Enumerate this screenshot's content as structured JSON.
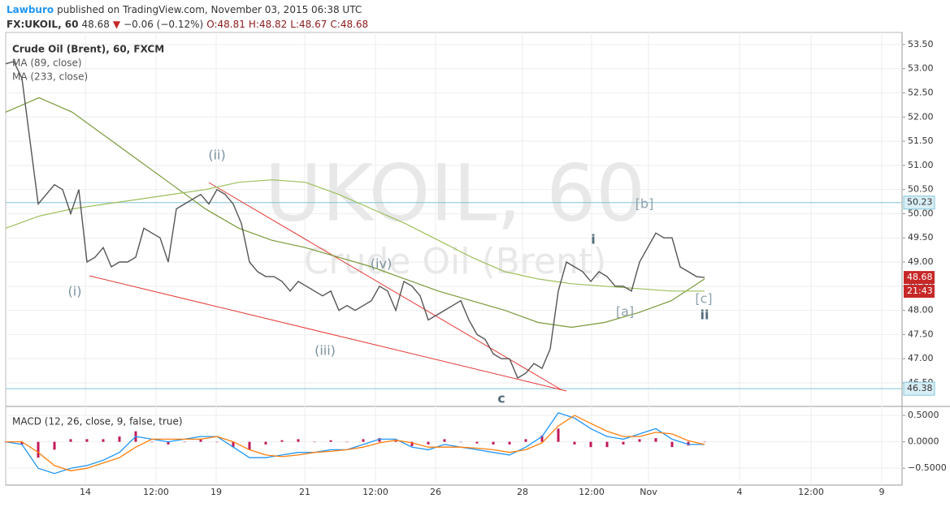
{
  "header": {
    "publisher": "Lawburo",
    "published": "published on TradingView.com, November 03, 2015 06:38 UTC",
    "symbol": "FX:UKOIL, 60",
    "last": "48.68",
    "arrow": "▼",
    "change": "−0.06 (−0.12%)",
    "open": "O:48.81",
    "high": "H:48.82",
    "low": "L:48.67",
    "close": "C:48.68"
  },
  "chart_data": [
    {
      "type": "line",
      "title": "Crude Oil (Brent), 60, FXCM",
      "watermark": "UKOIL, 60",
      "watermark_sub": "Crude Oil (Brent)",
      "color": "#555555",
      "values": [
        53.1,
        53.15,
        52.8,
        51.5,
        50.2,
        50.4,
        50.6,
        50.5,
        50.0,
        50.5,
        49.0,
        49.1,
        49.3,
        48.9,
        49.0,
        49.0,
        49.1,
        49.7,
        49.6,
        49.5,
        49.0,
        50.1,
        50.2,
        50.3,
        50.4,
        50.2,
        50.5,
        50.4,
        50.2,
        49.8,
        49.0,
        48.8,
        48.7,
        48.7,
        48.6,
        48.4,
        48.6,
        48.5,
        48.4,
        48.3,
        48.4,
        48.0,
        48.1,
        48.0,
        48.1,
        48.2,
        48.5,
        48.4,
        48.0,
        48.6,
        48.5,
        48.3,
        47.8,
        47.9,
        48.0,
        48.1,
        48.2,
        47.8,
        47.5,
        47.4,
        47.1,
        47.0,
        47.0,
        46.6,
        46.7,
        46.9,
        46.8,
        47.2,
        48.4,
        49.0,
        48.9,
        48.8,
        48.6,
        48.8,
        48.7,
        48.5,
        48.5,
        48.4,
        49.0,
        49.3,
        49.6,
        49.5,
        49.5,
        48.9,
        48.8,
        48.7,
        48.68
      ],
      "series": [
        {
          "name": "MA (89, close)",
          "color": "#7a9a3a",
          "values": [
            52.1,
            52.4,
            52.1,
            51.6,
            51.1,
            50.6,
            50.1,
            49.7,
            49.45,
            49.3,
            49.1,
            48.9,
            48.65,
            48.4,
            48.2,
            48.0,
            47.75,
            47.65,
            47.75,
            47.95,
            48.2,
            48.65
          ]
        },
        {
          "name": "MA (233, close)",
          "color": "#9cbf5a",
          "values": [
            49.7,
            49.95,
            50.1,
            50.2,
            50.3,
            50.4,
            50.5,
            50.65,
            50.7,
            50.65,
            50.4,
            50.1,
            49.8,
            49.45,
            49.1,
            48.8,
            48.65,
            48.55,
            48.5,
            48.45,
            48.4,
            48.4
          ]
        }
      ],
      "ylim": [
        46.03,
        53.75
      ],
      "yticks": [
        {
          "value": 46.5,
          "label": "46.50"
        },
        {
          "value": 47.0,
          "label": "47.00"
        },
        {
          "value": 47.5,
          "label": "47.50"
        },
        {
          "value": 48.0,
          "label": "48.00"
        },
        {
          "value": 48.5,
          "label": "48.50"
        },
        {
          "value": 49.0,
          "label": "49.00"
        },
        {
          "value": 49.5,
          "label": "49.50"
        },
        {
          "value": 50.0,
          "label": "50.00"
        },
        {
          "value": 50.5,
          "label": "50.50"
        },
        {
          "value": 51.0,
          "label": "51.00"
        },
        {
          "value": 51.5,
          "label": "51.50"
        },
        {
          "value": 52.0,
          "label": "52.00"
        },
        {
          "value": 52.5,
          "label": "52.50"
        },
        {
          "value": 53.0,
          "label": "53.00"
        },
        {
          "value": 53.5,
          "label": "53.50"
        }
      ],
      "price_lines": [
        {
          "value": 50.23,
          "label": "50.23"
        },
        {
          "value": 46.38,
          "label": "46.38"
        }
      ],
      "last_price": {
        "value": 48.68,
        "label": "48.68"
      },
      "countdown": "21:43",
      "annotations": [
        "(ii)",
        "(i)",
        "(iii)",
        "(iv)",
        "c",
        "i",
        "[b]",
        "[a]",
        "[c]",
        "ii"
      ],
      "grid": true
    },
    {
      "type": "macd",
      "title": "MACD (12, 26, close, 9, false, true)",
      "series": [
        {
          "name": "MACD",
          "color": "#2196f3",
          "values": [
            0.0,
            -0.05,
            -0.5,
            -0.6,
            -0.5,
            -0.45,
            -0.35,
            -0.2,
            0.1,
            0.05,
            0.0,
            0.05,
            0.1,
            0.1,
            -0.1,
            -0.3,
            -0.3,
            -0.25,
            -0.2,
            -0.2,
            -0.15,
            -0.15,
            -0.05,
            0.05,
            0.05,
            -0.1,
            -0.15,
            -0.05,
            -0.1,
            -0.15,
            -0.2,
            -0.25,
            -0.1,
            0.1,
            0.55,
            0.45,
            0.25,
            0.1,
            0.05,
            0.15,
            0.25,
            0.05,
            -0.05,
            -0.05
          ]
        },
        {
          "name": "Signal",
          "color": "#ff7f0e",
          "values": [
            0,
            0,
            -0.2,
            -0.45,
            -0.55,
            -0.5,
            -0.4,
            -0.3,
            -0.1,
            0.05,
            0.05,
            0.05,
            0.05,
            0.1,
            0.0,
            -0.15,
            -0.25,
            -0.28,
            -0.25,
            -0.2,
            -0.18,
            -0.15,
            -0.1,
            -0.02,
            0.03,
            -0.02,
            -0.1,
            -0.1,
            -0.1,
            -0.12,
            -0.15,
            -0.2,
            -0.15,
            -0.02,
            0.3,
            0.5,
            0.35,
            0.2,
            0.1,
            0.1,
            0.18,
            0.15,
            0.02,
            -0.05
          ]
        }
      ],
      "histogram": {
        "color": "#c2185b",
        "values": [
          0,
          -0.05,
          -0.3,
          -0.15,
          0.05,
          0.05,
          0.05,
          0.1,
          0.2,
          0,
          -0.05,
          0,
          0.05,
          0,
          -0.1,
          -0.15,
          -0.05,
          0.03,
          0.05,
          0,
          0.03,
          0,
          0.05,
          0.07,
          0.02,
          -0.08,
          -0.05,
          0.05,
          0,
          -0.03,
          -0.05,
          -0.05,
          0.05,
          0.12,
          0.25,
          -0.05,
          -0.1,
          -0.1,
          -0.05,
          0.05,
          0.07,
          -0.1,
          -0.07,
          0
        ]
      },
      "ylim": [
        -0.82,
        0.64
      ],
      "yticks": [
        {
          "value": 0.5,
          "label": "0.5000"
        },
        {
          "value": 0,
          "label": "0.0000"
        },
        {
          "value": -0.5,
          "label": "−0.5000"
        }
      ],
      "x_labels": [
        "14",
        "12:00",
        "19",
        "21",
        "12:00",
        "26",
        "28",
        "12:00",
        "Nov",
        "4",
        "12:00",
        "9"
      ]
    }
  ]
}
